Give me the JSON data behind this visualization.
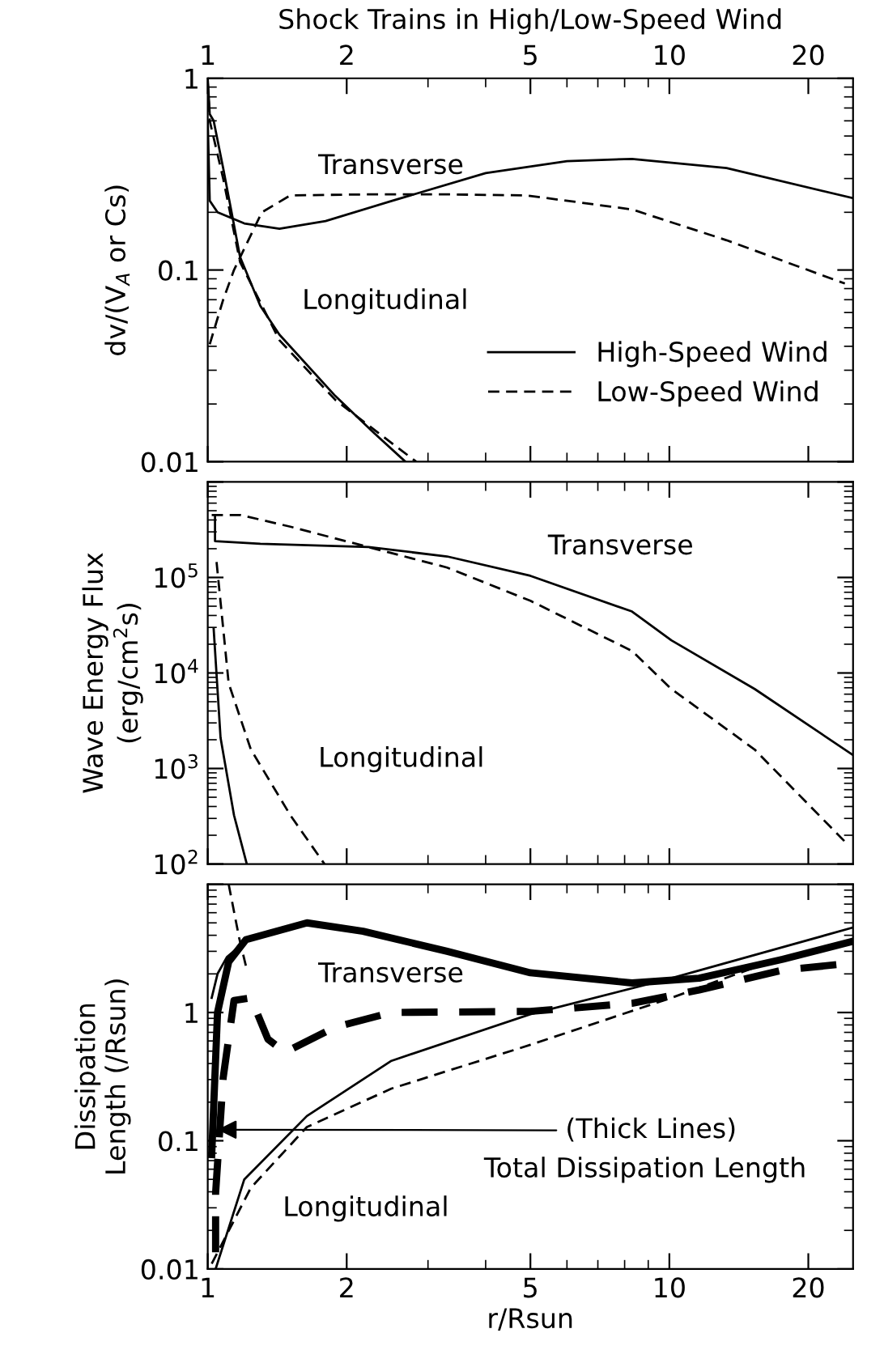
{
  "chart_data": [
    {
      "type": "line",
      "title": "Shock Trains in High/Low-Speed Wind",
      "ylabel": "dv/(V$_{A}$ or Cs)",
      "log": "xy",
      "xlim": [
        1,
        25
      ],
      "xticks": [
        1,
        2,
        5,
        10,
        20
      ],
      "ylim": [
        0.01,
        1
      ],
      "yticks": [
        0.01,
        0.1,
        1
      ],
      "legend": "bottom right",
      "grid": false,
      "series": [
        {
          "name": "High-Speed Wind",
          "color": "#000000",
          "line_style": "solid",
          "x": [
            1.0,
            1.01,
            1.05,
            1.2,
            1.43,
            1.8,
            2.5,
            4.0,
            6.0,
            8.3,
            13.3,
            25
          ],
          "values": [
            0.6,
            0.23,
            0.2,
            0.175,
            0.164,
            0.18,
            0.229,
            0.32,
            0.37,
            0.38,
            0.34,
            0.237
          ]
        },
        {
          "name": "Low-Speed Wind",
          "color": "#000000",
          "line_style": "dashed",
          "x": [
            1.01,
            1.08,
            1.14,
            1.31,
            1.51,
            2.2,
            3.3,
            4.9,
            8.3,
            13.3,
            24
          ],
          "values": [
            0.041,
            0.07,
            0.1,
            0.2,
            0.245,
            0.248,
            0.248,
            0.245,
            0.207,
            0.143,
            0.085
          ]
        },
        {
          "color": "#000000",
          "line_style": "solid",
          "x": [
            1.0,
            1.01,
            1.03,
            1.08,
            1.175,
            1.3,
            1.43,
            1.89,
            2.3,
            2.68
          ],
          "values": [
            1.0,
            0.65,
            0.6,
            0.34,
            0.117,
            0.065,
            0.046,
            0.022,
            0.014,
            0.01
          ]
        },
        {
          "color": "#000000",
          "line_style": "dashed",
          "x": [
            1.0,
            1.01,
            1.08,
            1.175,
            1.43,
            1.89,
            2.4,
            2.83
          ],
          "values": [
            0.95,
            0.6,
            0.3,
            0.11,
            0.043,
            0.021,
            0.0135,
            0.01
          ]
        }
      ],
      "annotations": [
        "Transverse",
        "Longitudinal"
      ]
    },
    {
      "type": "line",
      "ylabel": "Wave Energy Flux\n(erg/cm$^{2}$s)",
      "log": "xy",
      "xlim": [
        1,
        25
      ],
      "xticks": [
        1,
        2,
        5,
        10,
        20
      ],
      "ylim": [
        100,
        1000000
      ],
      "yticks": [
        {
          "value": 100,
          "label": "10$^{2}$"
        },
        {
          "value": 1000,
          "label": "10$^{3}$"
        },
        {
          "value": 10000,
          "label": "10$^{4}$"
        },
        {
          "value": 100000,
          "label": "10$^{5}$"
        },
        {
          "value": 1000000,
          "label": null
        }
      ],
      "tick_labels": "y",
      "grid": false,
      "series": [
        {
          "color": "#000000",
          "line_style": "solid",
          "x": [
            1.037,
            1.037,
            1.3,
            2.23,
            3.3,
            5.0,
            8.3,
            10.1,
            15.3,
            25
          ],
          "values": [
            450000,
            240000,
            225000,
            208000,
            166000,
            104000,
            44000,
            22000,
            6800,
            1380
          ]
        },
        {
          "color": "#000000",
          "line_style": "dashed",
          "x": [
            1.02,
            1.18,
            1.51,
            2.23,
            3.3,
            5.0,
            8.3,
            10.1,
            15.3,
            24.5
          ],
          "values": [
            450000,
            450000,
            340000,
            208000,
            127000,
            57000,
            17000,
            6800,
            1580,
            155
          ]
        },
        {
          "color": "#000000",
          "line_style": "solid",
          "x": [
            1.03,
            1.066,
            1.14,
            1.215
          ],
          "values": [
            29000,
            2100,
            324,
            100
          ]
        },
        {
          "color": "#000000",
          "line_style": "dashed",
          "x": [
            1.045,
            1.11,
            1.24,
            1.51,
            1.79
          ],
          "values": [
            145000,
            7800,
            1580,
            324,
            100
          ]
        }
      ],
      "annotations": [
        "Transverse",
        "Longitudinal"
      ]
    },
    {
      "type": "line",
      "xlabel": "r/Rsun",
      "ylabel": "Dissipation\nLength (/Rsun)",
      "log": "xy",
      "xlim": [
        1,
        25
      ],
      "xticks": [
        1,
        2,
        5,
        10,
        20
      ],
      "ylim": [
        0.01,
        10
      ],
      "yticks": [
        0.01,
        0.1,
        1,
        {
          "value": 10,
          "label": null
        }
      ],
      "grid": false,
      "series": [
        {
          "color": "#000000",
          "line_style": "solid",
          "x": [
            1.02,
            1.05,
            1.11,
            1.21,
            1.64,
            2.17,
            3.3,
            5.0,
            8.3,
            11.6,
            17.6,
            25
          ],
          "values": [
            0.078,
            1.0,
            2.48,
            3.7,
            5.0,
            4.3,
            3.0,
            2.04,
            1.7,
            1.85,
            2.6,
            3.6
          ]
        },
        {
          "color": "#000000",
          "line_style": "dashed",
          "x": [
            1.04,
            1.04,
            1.08,
            1.14,
            1.24,
            1.35,
            1.47,
            1.89,
            2.5,
            5.0,
            8.3,
            11.6,
            17.6,
            23
          ],
          "values": [
            0.01,
            0.039,
            0.31,
            1.24,
            1.3,
            0.62,
            0.49,
            0.77,
            1.0,
            1.02,
            1.18,
            1.5,
            2.14,
            2.36
          ]
        },
        {
          "color": "#000000",
          "line_style": "solid",
          "x": [
            1.02,
            1.05,
            1.1,
            1.15
          ],
          "values": [
            1.3,
            2.0,
            2.7,
            3.1
          ]
        },
        {
          "color": "#000000",
          "line_style": "dashed",
          "x": [
            1.11,
            1.17,
            1.21
          ],
          "values": [
            10,
            3.8,
            2.3
          ]
        },
        {
          "color": "#000000",
          "line_style": "solid",
          "x": [
            1.04,
            1.2,
            1.64,
            2.5,
            5.0,
            10.1,
            25
          ],
          "values": [
            0.01,
            0.05,
            0.156,
            0.42,
            0.97,
            1.85,
            4.6
          ]
        },
        {
          "color": "#000000",
          "line_style": "dashed",
          "x": [
            1.02,
            1.24,
            1.64,
            2.5,
            5.0,
            10.1,
            17.6
          ],
          "values": [
            0.011,
            0.043,
            0.128,
            0.255,
            0.56,
            1.3,
            2.7
          ]
        }
      ],
      "annotations": [
        "Transverse",
        "Longitudinal",
        {
          "text": "(Thick Lines)",
          "x": 1.05,
          "y": 0.122
        },
        "Total Dissipation Length"
      ]
    }
  ]
}
